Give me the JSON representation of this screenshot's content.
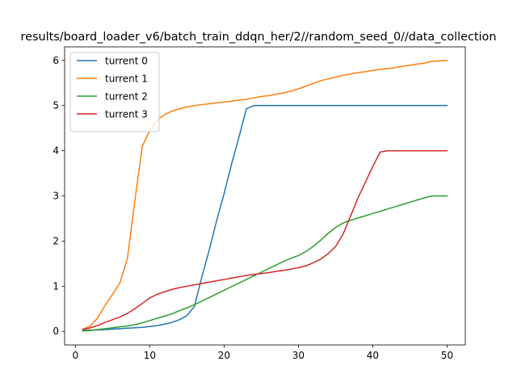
{
  "chart_data": {
    "type": "line",
    "title": "results/board_loader_v6/batch_train_ddqn_her/2//random_seed_0//data_collection",
    "xlabel": "",
    "ylabel": "",
    "xlim": [
      -1.45,
      52.45
    ],
    "ylim": [
      -0.3,
      6.3
    ],
    "xticks": [
      0,
      10,
      20,
      30,
      40,
      50
    ],
    "yticks": [
      0,
      1,
      2,
      3,
      4,
      5,
      6
    ],
    "grid": false,
    "legend_position": "top-left",
    "series": [
      {
        "name": "turrent 0",
        "color": "#1f77b4",
        "x": [
          1,
          2,
          3,
          4,
          5,
          6,
          7,
          8,
          9,
          10,
          11,
          12,
          13,
          14,
          15,
          16,
          17,
          18,
          19,
          20,
          21,
          22,
          23,
          24,
          25,
          26,
          27,
          28,
          29,
          30,
          31,
          32,
          33,
          34,
          35,
          36,
          37,
          38,
          39,
          40,
          41,
          42,
          43,
          44,
          45,
          46,
          47,
          48,
          49,
          50
        ],
        "y": [
          0.02,
          0.03,
          0.03,
          0.04,
          0.05,
          0.06,
          0.07,
          0.08,
          0.09,
          0.11,
          0.13,
          0.16,
          0.2,
          0.26,
          0.35,
          0.55,
          1.2,
          1.8,
          2.45,
          3.05,
          3.7,
          4.3,
          4.93,
          5,
          5,
          5,
          5,
          5,
          5,
          5,
          5,
          5,
          5,
          5,
          5,
          5,
          5,
          5,
          5,
          5,
          5,
          5,
          5,
          5,
          5,
          5,
          5,
          5,
          5,
          5
        ]
      },
      {
        "name": "turrent 1",
        "color": "#ff7f0e",
        "x": [
          1,
          2,
          3,
          4,
          5,
          6,
          7,
          8,
          9,
          10,
          11,
          12,
          13,
          14,
          15,
          16,
          17,
          18,
          19,
          20,
          21,
          22,
          23,
          24,
          25,
          26,
          27,
          28,
          29,
          30,
          31,
          32,
          33,
          34,
          35,
          36,
          37,
          38,
          39,
          40,
          41,
          42,
          43,
          44,
          45,
          46,
          47,
          48,
          49,
          50
        ],
        "y": [
          0.05,
          0.12,
          0.3,
          0.58,
          0.82,
          1.08,
          1.62,
          2.9,
          4.1,
          4.45,
          4.68,
          4.8,
          4.88,
          4.93,
          4.97,
          5.0,
          5.02,
          5.04,
          5.06,
          5.08,
          5.1,
          5.12,
          5.14,
          5.17,
          5.2,
          5.22,
          5.25,
          5.28,
          5.32,
          5.37,
          5.43,
          5.49,
          5.55,
          5.59,
          5.63,
          5.67,
          5.7,
          5.73,
          5.75,
          5.78,
          5.8,
          5.82,
          5.84,
          5.87,
          5.89,
          5.92,
          5.94,
          5.98,
          5.99,
          6.0
        ]
      },
      {
        "name": "turrent 2",
        "color": "#2ca02c",
        "x": [
          1,
          2,
          3,
          4,
          5,
          6,
          7,
          8,
          9,
          10,
          11,
          12,
          13,
          14,
          15,
          16,
          17,
          18,
          19,
          20,
          21,
          22,
          23,
          24,
          25,
          26,
          27,
          28,
          29,
          30,
          31,
          32,
          33,
          34,
          35,
          36,
          37,
          38,
          39,
          40,
          41,
          42,
          43,
          44,
          45,
          46,
          47,
          48,
          49,
          50
        ],
        "y": [
          0.01,
          0.02,
          0.04,
          0.06,
          0.08,
          0.1,
          0.12,
          0.15,
          0.19,
          0.24,
          0.29,
          0.34,
          0.39,
          0.46,
          0.52,
          0.59,
          0.67,
          0.75,
          0.83,
          0.91,
          0.99,
          1.07,
          1.15,
          1.23,
          1.31,
          1.39,
          1.47,
          1.55,
          1.62,
          1.68,
          1.77,
          1.88,
          2.02,
          2.17,
          2.3,
          2.4,
          2.46,
          2.51,
          2.56,
          2.61,
          2.66,
          2.71,
          2.76,
          2.81,
          2.86,
          2.91,
          2.96,
          3.0,
          3.0,
          3.0
        ]
      },
      {
        "name": "turrent 3",
        "color": "#d62728",
        "x": [
          1,
          2,
          3,
          4,
          5,
          6,
          7,
          8,
          9,
          10,
          11,
          12,
          13,
          14,
          15,
          16,
          17,
          18,
          19,
          20,
          21,
          22,
          23,
          24,
          25,
          26,
          27,
          28,
          29,
          30,
          31,
          32,
          33,
          34,
          35,
          36,
          37,
          38,
          39,
          40,
          41,
          42,
          43,
          44,
          45,
          46,
          47,
          48,
          49,
          50
        ],
        "y": [
          0.04,
          0.08,
          0.13,
          0.2,
          0.26,
          0.32,
          0.4,
          0.5,
          0.62,
          0.74,
          0.82,
          0.88,
          0.93,
          0.97,
          1.0,
          1.03,
          1.06,
          1.09,
          1.12,
          1.15,
          1.18,
          1.21,
          1.24,
          1.26,
          1.28,
          1.3,
          1.33,
          1.35,
          1.38,
          1.41,
          1.45,
          1.52,
          1.6,
          1.72,
          1.88,
          2.15,
          2.55,
          2.95,
          3.3,
          3.65,
          3.97,
          4,
          4,
          4,
          4,
          4,
          4,
          4,
          4,
          4
        ]
      }
    ]
  }
}
